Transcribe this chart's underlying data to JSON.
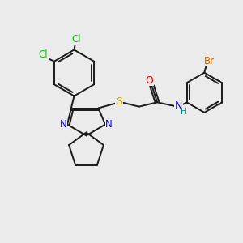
{
  "background_color": "#ebebeb",
  "bond_color": "#1a1a1a",
  "bond_width": 1.4,
  "atom_colors": {
    "Cl": "#00cc00",
    "N": "#0000ee",
    "S": "#ccaa00",
    "O": "#ee0000",
    "Br": "#cc6600",
    "H": "#008080",
    "C": "#1a1a1a"
  },
  "font_size": 8.5,
  "figsize": [
    3.0,
    3.0
  ],
  "dpi": 100
}
